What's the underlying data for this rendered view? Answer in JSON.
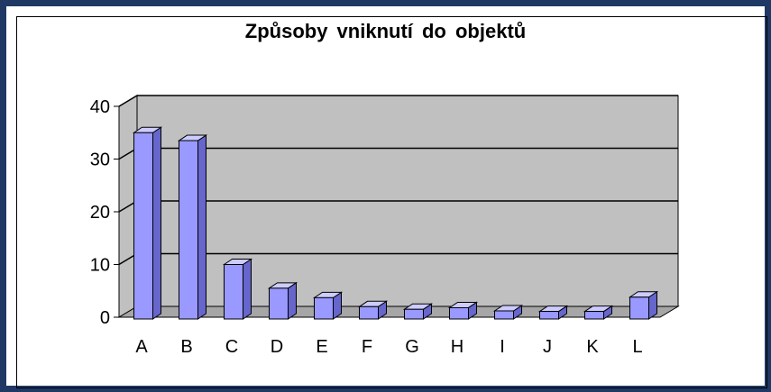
{
  "chart_data": {
    "type": "bar",
    "title": "Způsoby vniknutí do objektů",
    "xlabel": "",
    "ylabel": "",
    "categories": [
      "A",
      "B",
      "C",
      "D",
      "E",
      "F",
      "G",
      "H",
      "I",
      "J",
      "K",
      "L"
    ],
    "values": [
      35,
      33.5,
      10,
      5.5,
      3.7,
      2,
      1.5,
      1.8,
      1.2,
      1.1,
      1.1,
      3.8
    ],
    "ylim": [
      0,
      40
    ],
    "yticks": [
      0,
      10,
      20,
      30,
      40
    ],
    "grid": true,
    "legend": "none",
    "colors": {
      "bar_front": "#9999ff",
      "bar_top": "#ccccff",
      "bar_side": "#6666cc",
      "wall": "#c0c0c0",
      "floor": "#a6a6a6",
      "frame": "#1f3864"
    }
  }
}
